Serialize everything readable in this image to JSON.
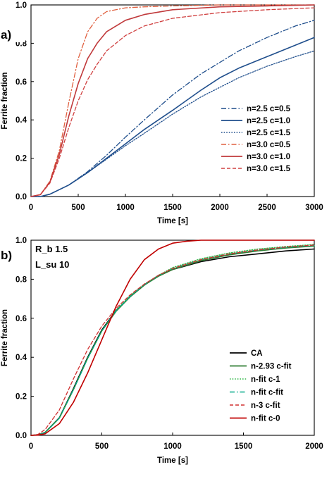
{
  "chart_data": [
    {
      "type": "line",
      "panel_label": "a)",
      "xlabel": "Time [s]",
      "ylabel": "Ferrite fraction",
      "xlim": [
        0,
        3000
      ],
      "ylim": [
        0,
        1.0
      ],
      "x_ticks": [
        "0",
        "500",
        "1000",
        "1500",
        "2000",
        "2500",
        "3000"
      ],
      "y_ticks": [
        "0.0",
        "0.2",
        "0.4",
        "0.6",
        "0.8",
        "1.0"
      ],
      "grid": false,
      "legend_position": "right",
      "series": [
        {
          "name": "n=2.5 c=0.5",
          "color": "#1f4e8c",
          "dash": "dashdot",
          "x": [
            0,
            100,
            200,
            400,
            600,
            800,
            1000,
            1200,
            1500,
            1800,
            2000,
            2200,
            2500,
            2800,
            3000
          ],
          "y": [
            0,
            0,
            0.012,
            0.06,
            0.13,
            0.215,
            0.31,
            0.4,
            0.53,
            0.64,
            0.7,
            0.76,
            0.83,
            0.89,
            0.92
          ]
        },
        {
          "name": "n=2.5 c=1.0",
          "color": "#1f4e8c",
          "dash": "solid",
          "x": [
            0,
            100,
            200,
            400,
            600,
            800,
            1000,
            1200,
            1500,
            1800,
            2000,
            2200,
            2500,
            2800,
            3000
          ],
          "y": [
            0,
            0,
            0.012,
            0.06,
            0.125,
            0.2,
            0.275,
            0.35,
            0.45,
            0.555,
            0.62,
            0.67,
            0.73,
            0.79,
            0.83
          ]
        },
        {
          "name": "n=2.5 c=1.5",
          "color": "#1f4e8c",
          "dash": "dotted",
          "x": [
            0,
            100,
            200,
            400,
            600,
            800,
            1000,
            1200,
            1500,
            1800,
            2000,
            2200,
            2500,
            2800,
            3000
          ],
          "y": [
            0,
            0,
            0.012,
            0.06,
            0.125,
            0.195,
            0.265,
            0.33,
            0.43,
            0.52,
            0.57,
            0.62,
            0.68,
            0.73,
            0.76
          ]
        },
        {
          "name": "n=3.0 c=0.5",
          "color": "#e06040",
          "dash": "dashdot",
          "x": [
            0,
            100,
            200,
            300,
            400,
            500,
            600,
            700,
            800,
            1000,
            1200,
            1500,
            2000,
            2500,
            3000
          ],
          "y": [
            0,
            0.01,
            0.08,
            0.24,
            0.49,
            0.72,
            0.86,
            0.93,
            0.965,
            0.985,
            0.99,
            0.995,
            1,
            1,
            1
          ]
        },
        {
          "name": "n=3.0 c=1.0",
          "color": "#c0393b",
          "dash": "solid",
          "x": [
            0,
            100,
            200,
            300,
            400,
            500,
            600,
            700,
            800,
            1000,
            1200,
            1500,
            2000,
            2500,
            3000
          ],
          "y": [
            0,
            0.01,
            0.075,
            0.22,
            0.42,
            0.59,
            0.72,
            0.8,
            0.86,
            0.92,
            0.95,
            0.975,
            0.99,
            0.995,
            1
          ]
        },
        {
          "name": "n=3.0 c=1.5",
          "color": "#d04040",
          "dash": "dashed",
          "x": [
            0,
            100,
            200,
            300,
            400,
            500,
            600,
            700,
            800,
            1000,
            1200,
            1500,
            2000,
            2500,
            3000
          ],
          "y": [
            0,
            0.01,
            0.07,
            0.2,
            0.36,
            0.5,
            0.61,
            0.69,
            0.76,
            0.84,
            0.89,
            0.93,
            0.96,
            0.975,
            0.985
          ]
        }
      ]
    },
    {
      "type": "line",
      "panel_label": "b)",
      "annotations": [
        "R_b 1.5",
        "L_su 10"
      ],
      "xlabel": "Time [s]",
      "ylabel": "Ferrite fraction",
      "xlim": [
        0,
        2000
      ],
      "ylim": [
        0,
        1.0
      ],
      "x_ticks": [
        "0",
        "500",
        "1000",
        "1500",
        "2000"
      ],
      "y_ticks": [
        "0.0",
        "0.2",
        "0.4",
        "0.6",
        "0.8",
        "1.0"
      ],
      "grid": false,
      "legend_position": "bottom-right",
      "series": [
        {
          "name": "CA",
          "color": "#000000",
          "dash": "solid",
          "x": [
            0,
            50,
            100,
            200,
            300,
            400,
            500,
            600,
            700,
            800,
            900,
            1000,
            1200,
            1400,
            1600,
            1800,
            2000
          ],
          "y": [
            0,
            0.002,
            0.015,
            0.09,
            0.24,
            0.4,
            0.54,
            0.64,
            0.71,
            0.77,
            0.82,
            0.85,
            0.89,
            0.915,
            0.93,
            0.945,
            0.955
          ]
        },
        {
          "name": "n-2.93 c-fit",
          "color": "#2e7d32",
          "dash": "solid",
          "x": [
            0,
            50,
            100,
            200,
            300,
            400,
            500,
            600,
            700,
            800,
            900,
            1000,
            1200,
            1400,
            1600,
            1800,
            2000
          ],
          "y": [
            0,
            0.002,
            0.014,
            0.088,
            0.235,
            0.395,
            0.535,
            0.635,
            0.71,
            0.77,
            0.815,
            0.85,
            0.895,
            0.925,
            0.945,
            0.96,
            0.97
          ]
        },
        {
          "name": "n-fit c-1",
          "color": "#33b84a",
          "dash": "dotted",
          "x": [
            0,
            50,
            100,
            200,
            300,
            400,
            500,
            600,
            700,
            800,
            900,
            1000,
            1200,
            1400,
            1600,
            1800,
            2000
          ],
          "y": [
            0,
            0.002,
            0.014,
            0.088,
            0.235,
            0.395,
            0.535,
            0.64,
            0.715,
            0.775,
            0.82,
            0.86,
            0.905,
            0.935,
            0.955,
            0.968,
            0.978
          ]
        },
        {
          "name": "n-fit c-fit",
          "color": "#00a888",
          "dash": "dashdot",
          "x": [
            0,
            50,
            100,
            200,
            300,
            400,
            500,
            600,
            700,
            800,
            900,
            1000,
            1200,
            1400,
            1600,
            1800,
            2000
          ],
          "y": [
            0,
            0.002,
            0.014,
            0.088,
            0.235,
            0.395,
            0.535,
            0.637,
            0.712,
            0.772,
            0.818,
            0.855,
            0.9,
            0.93,
            0.95,
            0.963,
            0.973
          ]
        },
        {
          "name": "n-3 c-fit",
          "color": "#d03030",
          "dash": "dashed",
          "x": [
            0,
            50,
            100,
            200,
            300,
            400,
            500,
            600,
            700,
            800,
            900,
            1000,
            1200,
            1400,
            1600,
            1800,
            2000
          ],
          "y": [
            0,
            0.005,
            0.03,
            0.13,
            0.29,
            0.44,
            0.56,
            0.65,
            0.72,
            0.775,
            0.82,
            0.855,
            0.9,
            0.93,
            0.95,
            0.965,
            0.975
          ]
        },
        {
          "name": "n-fit c-0",
          "color": "#c00000",
          "dash": "solid",
          "x": [
            0,
            50,
            100,
            200,
            300,
            400,
            500,
            600,
            700,
            800,
            900,
            1000,
            1100,
            1200,
            1400,
            1600,
            1800,
            2000
          ],
          "y": [
            0,
            0.001,
            0.008,
            0.06,
            0.17,
            0.32,
            0.49,
            0.66,
            0.8,
            0.9,
            0.955,
            0.985,
            0.995,
            1,
            1,
            1,
            1,
            1
          ]
        }
      ]
    }
  ]
}
